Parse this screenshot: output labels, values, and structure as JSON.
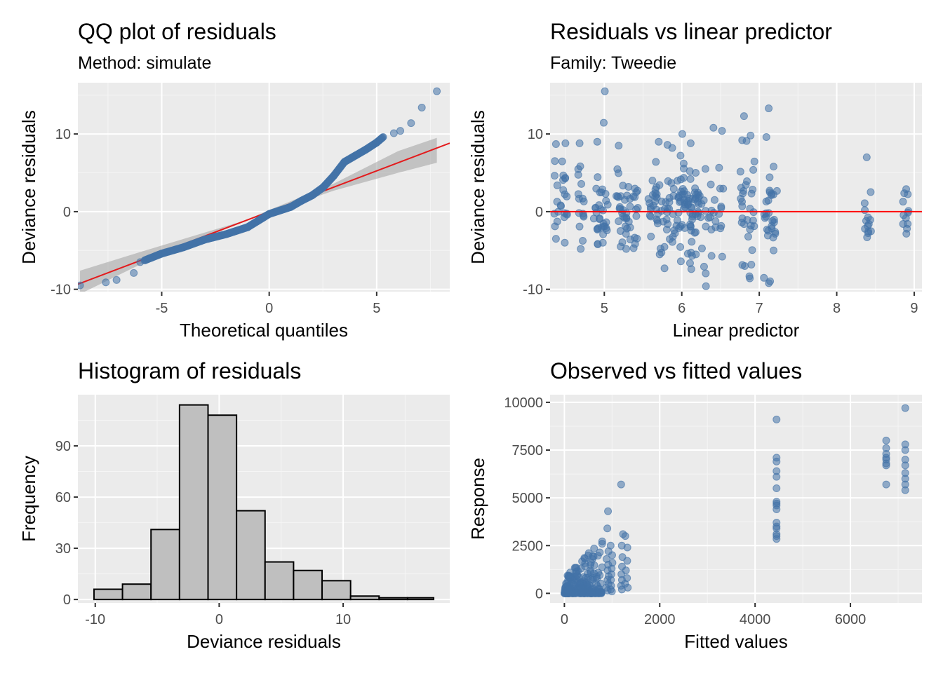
{
  "chart_data": [
    {
      "type": "scatter",
      "title": "QQ plot of residuals",
      "subtitle": "Method: simulate",
      "xlabel": "Theoretical quantiles",
      "ylabel": "Deviance residuals",
      "xlim": [
        -8.9,
        8.4
      ],
      "ylim": [
        -10.3,
        16.6
      ],
      "xticks": [
        -5,
        0,
        5
      ],
      "yticks": [
        -10,
        0,
        10
      ],
      "grid": true,
      "reference_line": {
        "color": "#e31a1c",
        "intercept": 0,
        "slope": 1.05
      },
      "confidence_band": [
        [
          -8.8,
          -7.6,
          -10.6
        ],
        [
          -6,
          -5.2,
          -6.8
        ],
        [
          -3,
          -2.7,
          -3.4
        ],
        [
          0,
          -0.2,
          0.2
        ],
        [
          3,
          2.7,
          3.6
        ],
        [
          6,
          5.0,
          7.8
        ],
        [
          7.8,
          6.3,
          9.5
        ]
      ],
      "points_color": "#4473a7",
      "anchors": [
        [
          -8.8,
          -9.5
        ],
        [
          -7.6,
          -9.1
        ],
        [
          -7.1,
          -8.8
        ],
        [
          -6.3,
          -7.9
        ],
        [
          -6,
          -6.5
        ],
        [
          -5,
          -5.4
        ],
        [
          -4,
          -4.6
        ],
        [
          -3,
          -3.6
        ],
        [
          -2,
          -2.9
        ],
        [
          -1,
          -2.0
        ],
        [
          0,
          -0.3
        ],
        [
          1,
          0.6
        ],
        [
          1.5,
          1.4
        ],
        [
          2,
          2.1
        ],
        [
          2.5,
          3.1
        ],
        [
          3,
          4.6
        ],
        [
          3.5,
          6.4
        ],
        [
          4,
          7.2
        ],
        [
          4.5,
          8.0
        ],
        [
          5,
          8.9
        ],
        [
          5.3,
          9.6
        ],
        [
          5.8,
          10.1
        ],
        [
          6.1,
          10.4
        ],
        [
          6.6,
          11.4
        ],
        [
          7.1,
          13.4
        ],
        [
          7.8,
          15.5
        ]
      ]
    },
    {
      "type": "scatter",
      "title": "Residuals vs linear predictor",
      "subtitle": "Family: Tweedie",
      "xlabel": "Linear predictor",
      "ylabel": "Deviance residuals",
      "xlim": [
        4.3,
        9.1
      ],
      "ylim": [
        -10.3,
        16.6
      ],
      "xticks": [
        5,
        6,
        7,
        8,
        9
      ],
      "yticks": [
        -10,
        0,
        10
      ],
      "grid": true,
      "reference_line": {
        "color": "#ff0000",
        "y": 0
      },
      "points_color": "#4473a7",
      "clusters": [
        [
          4.4,
          10,
          8.7,
          -3.5
        ],
        [
          4.5,
          12,
          8.8,
          -4.0
        ],
        [
          4.7,
          14,
          8.8,
          -4.8
        ],
        [
          4.9,
          14,
          9.0,
          -4.2
        ],
        [
          5.0,
          16,
          15.5,
          -4.0
        ],
        [
          5.2,
          16,
          8.5,
          -4.5
        ],
        [
          5.3,
          14,
          3.2,
          -4.8
        ],
        [
          5.4,
          10,
          2.5,
          -4.7
        ],
        [
          5.6,
          8,
          4.0,
          -3.2
        ],
        [
          5.7,
          18,
          9.0,
          -5.5
        ],
        [
          5.8,
          14,
          8.6,
          -7.3
        ],
        [
          5.9,
          10,
          8.2,
          -3.9
        ],
        [
          6.0,
          26,
          10.0,
          -6.4
        ],
        [
          6.1,
          24,
          8.8,
          -7.4
        ],
        [
          6.2,
          18,
          5.0,
          -5.5
        ],
        [
          6.3,
          8,
          5.5,
          -9.6
        ],
        [
          6.4,
          8,
          10.8,
          -5.7
        ],
        [
          6.5,
          8,
          10.4,
          -5.8
        ],
        [
          6.8,
          16,
          12.3,
          -7.0
        ],
        [
          6.9,
          14,
          9.8,
          -8.6
        ],
        [
          7.1,
          16,
          13.3,
          -9.2
        ],
        [
          7.2,
          12,
          5.8,
          -5.0
        ],
        [
          8.4,
          12,
          7.0,
          -3.3
        ],
        [
          8.9,
          10,
          2.9,
          -2.2
        ]
      ]
    },
    {
      "type": "bar",
      "title": "Histogram of residuals",
      "xlabel": "Deviance residuals",
      "ylabel": "Frequency",
      "bin_edges": [
        -10.1,
        -7.8,
        -5.5,
        -3.2,
        -0.9,
        1.4,
        3.7,
        6.0,
        8.3,
        10.6,
        12.9,
        15.2,
        17.3
      ],
      "values": [
        6,
        9,
        41,
        114,
        108,
        52,
        22,
        17,
        11,
        2,
        1,
        1
      ],
      "xlim": [
        -11.4,
        18.6
      ],
      "ylim": [
        -2,
        120
      ],
      "xticks": [
        -10,
        0,
        10
      ],
      "yticks": [
        0,
        30,
        60,
        90
      ],
      "grid": true,
      "bar_fill": "#bfbfbf",
      "bar_stroke": "#000000"
    },
    {
      "type": "scatter",
      "title": "Observed vs fitted values",
      "xlabel": "Fitted values",
      "ylabel": "Response",
      "xlim": [
        -300,
        7500
      ],
      "ylim": [
        -500,
        10400
      ],
      "xticks": [
        0,
        2000,
        4000,
        6000
      ],
      "yticks": [
        0,
        2500,
        5000,
        7500,
        10000
      ],
      "grid": true,
      "points_color": "#4473a7",
      "columns": [
        [
          4450,
          [
            9100,
            7100,
            6900,
            6400,
            6100,
            5500,
            4800,
            4700,
            4600,
            4400,
            3700,
            3500,
            3400,
            3100,
            3000,
            2850
          ]
        ],
        [
          6750,
          [
            8000,
            7600,
            7300,
            7100,
            7000,
            6800,
            6700,
            5700
          ]
        ],
        [
          7150,
          [
            9700,
            7800,
            7500,
            7000,
            6700,
            6300,
            6000,
            5700,
            5400
          ]
        ]
      ],
      "vertical_groups": [
        [
          900,
          [
            4300,
            3400,
            2200,
            1800,
            1500,
            1200,
            900,
            700,
            500,
            300,
            150
          ]
        ],
        [
          1000,
          [
            2500,
            2000,
            1600,
            1300,
            1000,
            700,
            400,
            200,
            100
          ]
        ],
        [
          1200,
          [
            5700,
            3100,
            2500,
            1900,
            1400,
            1000,
            700,
            400,
            200
          ]
        ],
        [
          1300,
          [
            3000,
            2400,
            1700,
            1200,
            800,
            500,
            300
          ]
        ]
      ],
      "low_cluster": {
        "x_range": [
          0,
          800
        ],
        "y_range": [
          0,
          2600
        ],
        "count": 240
      }
    }
  ]
}
